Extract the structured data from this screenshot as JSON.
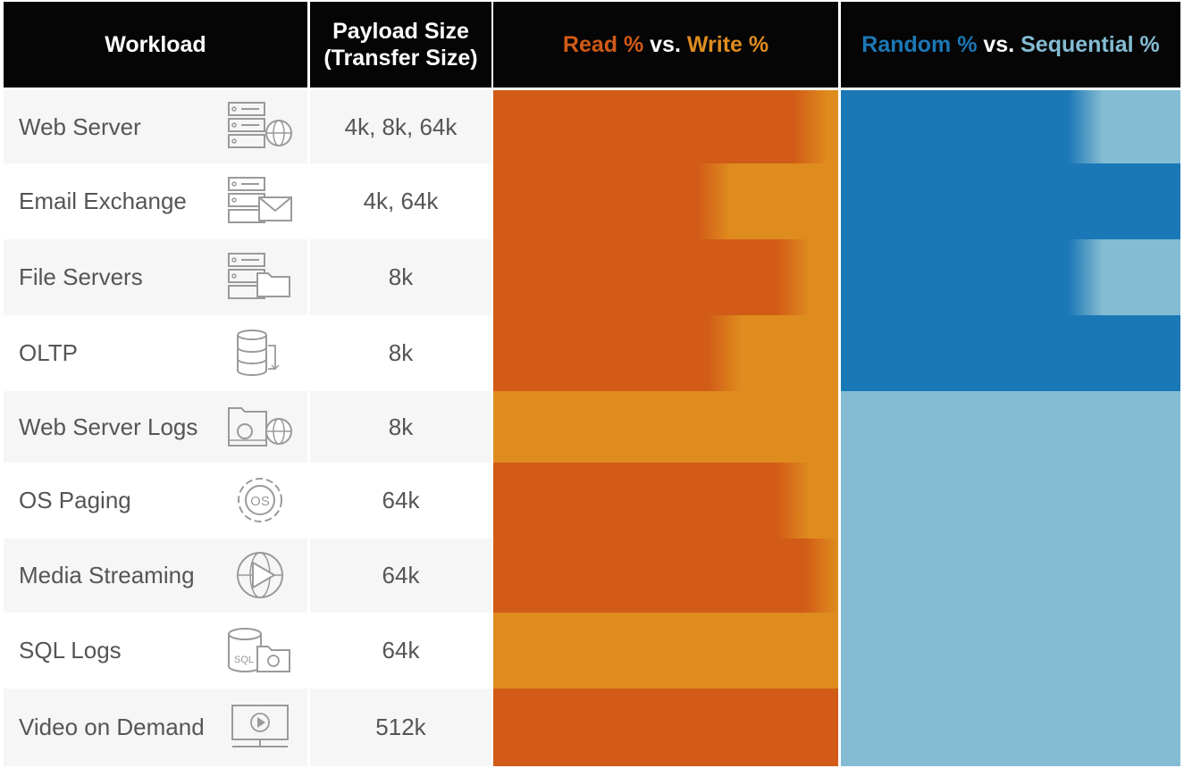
{
  "headers": {
    "workload": "Workload",
    "payload_line1": "Payload Size",
    "payload_line2": "(Transfer Size)",
    "rw": {
      "read": "Read %",
      "vs": "vs.",
      "write": "Write %"
    },
    "rs": {
      "random": "Random %",
      "vs": "vs.",
      "sequential": "Sequential %"
    }
  },
  "colors": {
    "header_bg": "#050505",
    "read": "#d15b17",
    "write": "#df8c1e",
    "random": "#1b78b6",
    "sequential": "#84bcd3",
    "row_alt": "#f6f6f6"
  },
  "chart_data": {
    "type": "table",
    "columns": [
      "Workload",
      "Payload Size (Transfer Size)",
      "Read % vs. Write %",
      "Random % vs. Sequential %"
    ],
    "rows": [
      {
        "workload": "Web Server",
        "icon": "server-globe-icon",
        "payload": "4k, 8k, 64k",
        "read": 95,
        "random": 75
      },
      {
        "workload": "Email Exchange",
        "icon": "server-mail-icon",
        "payload": "4k, 64k",
        "read": 67,
        "random": 100
      },
      {
        "workload": "File Servers",
        "icon": "server-folder-icon",
        "payload": "8k",
        "read": 90,
        "random": 75
      },
      {
        "workload": "OLTP",
        "icon": "database-sync-icon",
        "payload": "8k",
        "read": 70,
        "random": 100
      },
      {
        "workload": "Web Server Logs",
        "icon": "log-globe-icon",
        "payload": "8k",
        "read": 0,
        "random": 0
      },
      {
        "workload": "OS Paging",
        "icon": "os-gear-icon",
        "payload": "64k",
        "read": 90,
        "random": 0
      },
      {
        "workload": "Media Streaming",
        "icon": "play-globe-icon",
        "payload": "64k",
        "read": 98,
        "random": 0
      },
      {
        "workload": "SQL Logs",
        "icon": "sql-log-icon",
        "payload": "64k",
        "read": 0,
        "random": 0
      },
      {
        "workload": "Video on Demand",
        "icon": "video-monitor-icon",
        "payload": "512k",
        "read": 100,
        "random": 0
      }
    ]
  }
}
